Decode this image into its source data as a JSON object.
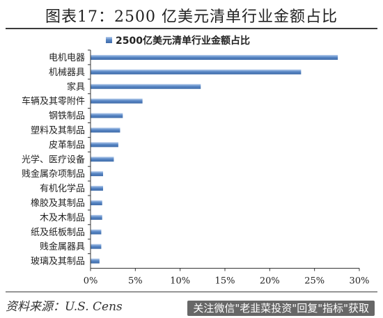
{
  "title": "图表17：2500 亿美元清单行业金额占比",
  "source": "资料来源：U.S. Cens",
  "watermark": "关注微信\"老韭菜投资\"回复\"指标\"获取",
  "colors": {
    "bar": "#4f7fbf",
    "bar_light": "#9dbbe2",
    "axis": "#333333",
    "rule": "#3a3a3a"
  },
  "chart_data": {
    "type": "bar",
    "orientation": "horizontal",
    "series": [
      {
        "name": "2500亿美元清单行业金额占比",
        "values": [
          27.6,
          23.5,
          12.3,
          5.8,
          3.6,
          3.3,
          3.1,
          2.6,
          1.4,
          1.4,
          1.3,
          1.3,
          1.2,
          1.2,
          1.0
        ]
      }
    ],
    "categories": [
      "电机电器",
      "机械器具",
      "家具",
      "车辆及其零附件",
      "钢铁制品",
      "塑料及其制品",
      "皮革制品",
      "光学、医疗设备",
      "贱金属杂项制品",
      "有机化学品",
      "橡胶及其制品",
      "木及木制品",
      "纸及纸板制品",
      "贱金属器具",
      "玻璃及其制品"
    ],
    "xlim": [
      0,
      30
    ],
    "xticks": [
      "0%",
      "5%",
      "10%",
      "15%",
      "20%",
      "25%",
      "30%"
    ],
    "legend_position": "top",
    "grid": false
  }
}
